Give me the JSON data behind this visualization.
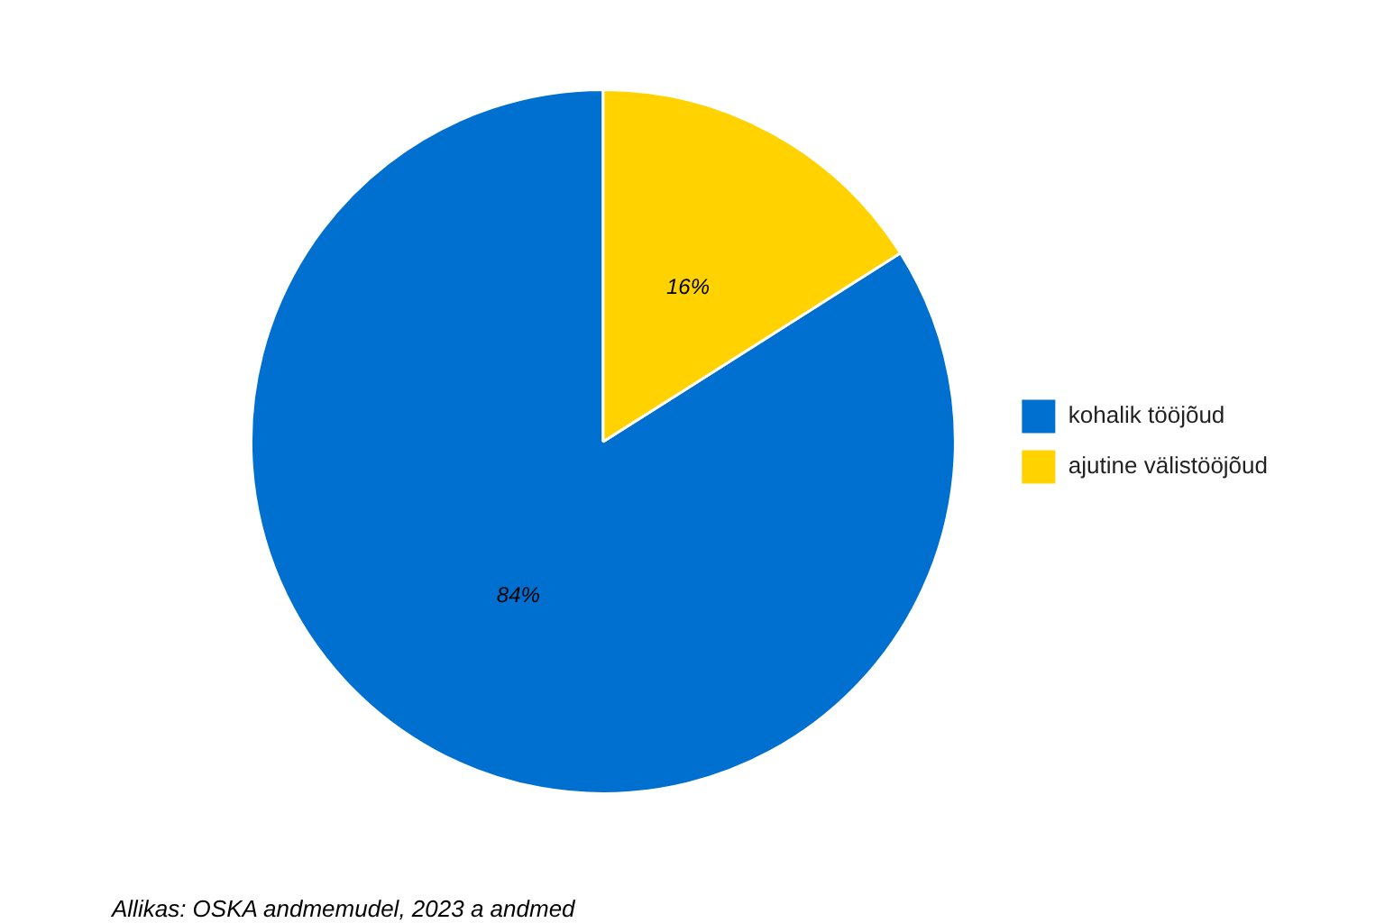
{
  "chart_data": {
    "type": "pie",
    "categories": [
      "kohalik tööjõud",
      "ajutine välistööjõud"
    ],
    "values": [
      84,
      16
    ],
    "colors": [
      "#0070d0",
      "#ffd200"
    ],
    "value_labels": [
      "84%",
      "16%"
    ],
    "legend": "right",
    "annotations": [
      "Allikas: OSKA andmemudel, 2023 a andmed"
    ]
  }
}
